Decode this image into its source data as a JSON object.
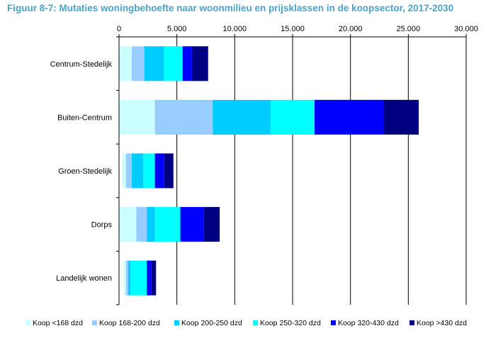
{
  "chart_data": {
    "type": "bar",
    "orientation": "horizontal",
    "stacked": true,
    "title": "Figuur 8-7: Mutaties woningbehoefte naar woonmilieu en prijsklassen in de koopsector, 2017-2030",
    "xlim": [
      0,
      30000
    ],
    "x_ticks": [
      0,
      5000,
      10000,
      15000,
      20000,
      25000,
      30000
    ],
    "x_tick_labels": [
      "0",
      "5.000",
      "10.000",
      "15.000",
      "20.000",
      "25.000",
      "30.000"
    ],
    "grid": "vertical",
    "legend_position": "bottom",
    "categories": [
      "Centrum-Stedelijk",
      "Buiten-Centrum",
      "Groen-Stedelijk",
      "Dorps",
      "Landelijk wonen"
    ],
    "category_offsets": [
      0,
      0,
      300,
      0,
      400
    ],
    "series": [
      {
        "name": "Koop <168 dzd",
        "color": "#ccffff",
        "values": [
          1100,
          3100,
          300,
          1500,
          200
        ]
      },
      {
        "name": "Koop 168-200 dzd",
        "color": "#99ccff",
        "values": [
          1100,
          5000,
          500,
          900,
          200
        ]
      },
      {
        "name": "Koop 200-250 dzd",
        "color": "#00ccff",
        "values": [
          1700,
          5000,
          1000,
          700,
          200
        ]
      },
      {
        "name": "Koop 250-320 dzd",
        "color": "#00ffff",
        "values": [
          1600,
          3800,
          1000,
          2200,
          1400
        ]
      },
      {
        "name": "Koop 320-430 dzd",
        "color": "#0000ff",
        "values": [
          800,
          6000,
          800,
          2000,
          400
        ]
      },
      {
        "name": "Koop >430 dzd",
        "color": "#000080",
        "values": [
          1400,
          3000,
          800,
          1400,
          400
        ]
      }
    ]
  }
}
